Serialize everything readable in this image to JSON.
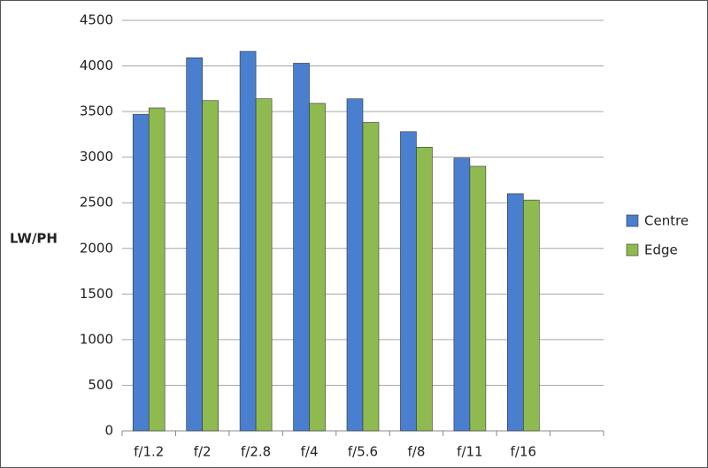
{
  "chart_data": {
    "type": "bar",
    "y_label": "LW/PH",
    "categories": [
      "f/1.2",
      "f/2",
      "f/2.8",
      "f/4",
      "f/5.6",
      "f/8",
      "f/11",
      "f/16",
      null
    ],
    "series": [
      {
        "name": "Centre",
        "color": "#4a7fd0",
        "values": [
          3470,
          4090,
          4160,
          4030,
          3640,
          3280,
          2990,
          2600,
          null
        ]
      },
      {
        "name": "Edge",
        "color": "#8fba4f",
        "values": [
          3540,
          3620,
          3640,
          3590,
          3380,
          3110,
          2900,
          2530,
          null
        ]
      }
    ],
    "ylim": [
      0,
      4500
    ],
    "yticks": [
      0,
      500,
      1000,
      1500,
      2000,
      2500,
      3000,
      3500,
      4000,
      4500
    ],
    "grid": true,
    "legend": "right"
  }
}
